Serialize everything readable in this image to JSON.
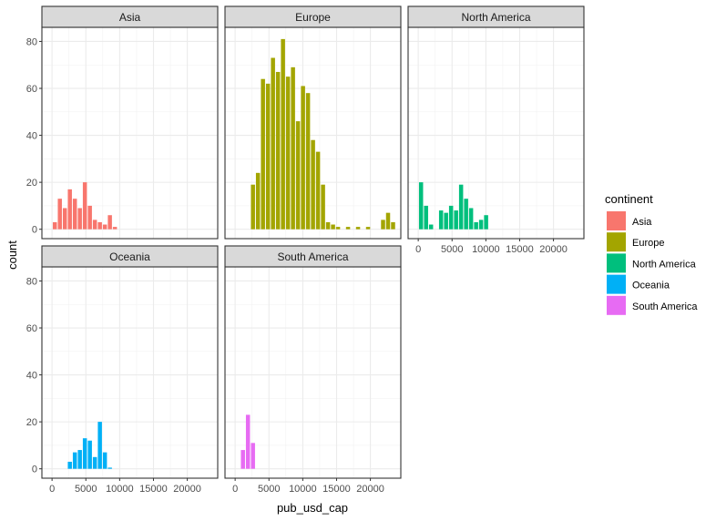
{
  "chart_data": {
    "type": "bar",
    "subtype": "faceted-histogram",
    "title": "",
    "xlabel": "pub_usd_cap",
    "ylabel": "count",
    "xlim": [
      -1500,
      24500
    ],
    "ylim": [
      -4,
      86
    ],
    "x_ticks": [
      0,
      5000,
      10000,
      15000,
      20000
    ],
    "y_ticks": [
      0,
      20,
      40,
      60,
      80
    ],
    "bin_width": 740,
    "grid": true,
    "legend": {
      "title": "continent",
      "placement": "right",
      "entries": [
        {
          "label": "Asia",
          "color": "#F8766D"
        },
        {
          "label": "Europe",
          "color": "#A3A500"
        },
        {
          "label": "North America",
          "color": "#00BF7D"
        },
        {
          "label": "Oceania",
          "color": "#00B0F6"
        },
        {
          "label": "South America",
          "color": "#E76BF3"
        }
      ]
    },
    "facets": [
      {
        "name": "Asia",
        "color": "#F8766D",
        "bins": [
          {
            "x": 415,
            "count": 3
          },
          {
            "x": 1155,
            "count": 13
          },
          {
            "x": 1895,
            "count": 9
          },
          {
            "x": 2635,
            "count": 17
          },
          {
            "x": 3375,
            "count": 13
          },
          {
            "x": 4115,
            "count": 9
          },
          {
            "x": 4855,
            "count": 20
          },
          {
            "x": 5595,
            "count": 10
          },
          {
            "x": 6335,
            "count": 4
          },
          {
            "x": 7075,
            "count": 3
          },
          {
            "x": 7815,
            "count": 2
          },
          {
            "x": 8555,
            "count": 6
          },
          {
            "x": 9295,
            "count": 1
          }
        ]
      },
      {
        "name": "Europe",
        "color": "#A3A500",
        "bins": [
          {
            "x": 2635,
            "count": 19
          },
          {
            "x": 3375,
            "count": 24
          },
          {
            "x": 4115,
            "count": 64
          },
          {
            "x": 4855,
            "count": 62
          },
          {
            "x": 5595,
            "count": 73
          },
          {
            "x": 6335,
            "count": 67
          },
          {
            "x": 7075,
            "count": 81
          },
          {
            "x": 7815,
            "count": 65
          },
          {
            "x": 8555,
            "count": 69
          },
          {
            "x": 9295,
            "count": 46
          },
          {
            "x": 10035,
            "count": 61
          },
          {
            "x": 10775,
            "count": 58
          },
          {
            "x": 11515,
            "count": 38
          },
          {
            "x": 12255,
            "count": 33
          },
          {
            "x": 12995,
            "count": 19
          },
          {
            "x": 13735,
            "count": 3
          },
          {
            "x": 14475,
            "count": 2
          },
          {
            "x": 15215,
            "count": 1
          },
          {
            "x": 16695,
            "count": 1
          },
          {
            "x": 18175,
            "count": 1
          },
          {
            "x": 19655,
            "count": 1
          },
          {
            "x": 21875,
            "count": 4
          },
          {
            "x": 22615,
            "count": 7
          },
          {
            "x": 23355,
            "count": 3
          }
        ]
      },
      {
        "name": "North America",
        "color": "#00BF7D",
        "bins": [
          {
            "x": 415,
            "count": 20
          },
          {
            "x": 1155,
            "count": 10
          },
          {
            "x": 1895,
            "count": 2
          },
          {
            "x": 3375,
            "count": 8
          },
          {
            "x": 4115,
            "count": 7
          },
          {
            "x": 4855,
            "count": 10
          },
          {
            "x": 5595,
            "count": 8
          },
          {
            "x": 6335,
            "count": 19
          },
          {
            "x": 7075,
            "count": 13
          },
          {
            "x": 7815,
            "count": 9
          },
          {
            "x": 8555,
            "count": 3
          },
          {
            "x": 9295,
            "count": 4
          },
          {
            "x": 10035,
            "count": 6
          }
        ]
      },
      {
        "name": "Oceania",
        "color": "#00B0F6",
        "bins": [
          {
            "x": 2635,
            "count": 3
          },
          {
            "x": 3375,
            "count": 7
          },
          {
            "x": 4115,
            "count": 8
          },
          {
            "x": 4855,
            "count": 13
          },
          {
            "x": 5595,
            "count": 12
          },
          {
            "x": 6335,
            "count": 5
          },
          {
            "x": 7075,
            "count": 20
          },
          {
            "x": 7815,
            "count": 7
          },
          {
            "x": 8555,
            "count": 0.5
          }
        ]
      },
      {
        "name": "South America",
        "color": "#E76BF3",
        "bins": [
          {
            "x": 1155,
            "count": 8
          },
          {
            "x": 1895,
            "count": 23
          },
          {
            "x": 2635,
            "count": 11
          }
        ]
      }
    ]
  }
}
